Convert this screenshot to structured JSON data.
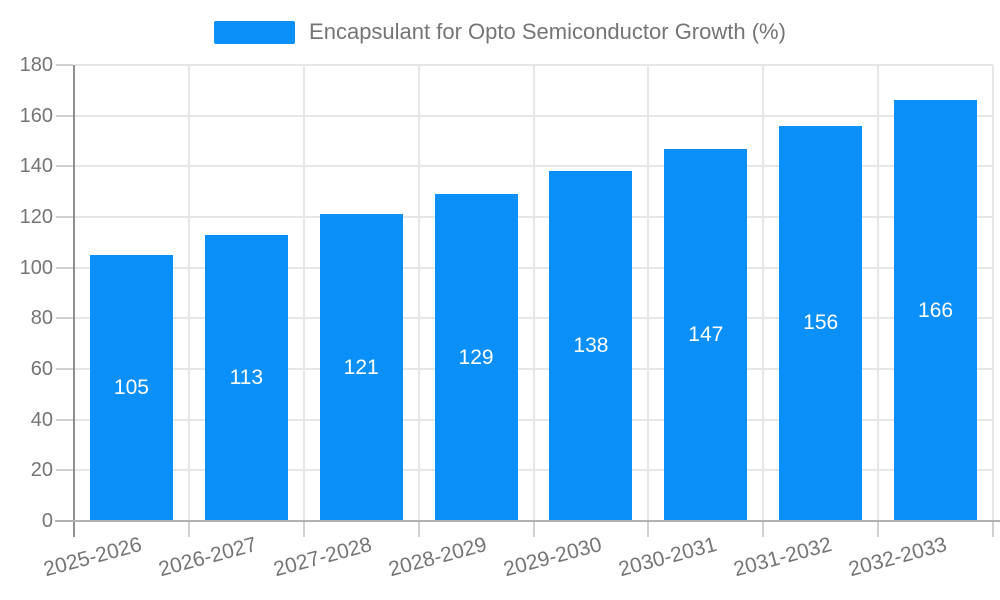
{
  "legend": {
    "label": "Encapsulant for Opto Semiconductor Growth (%)"
  },
  "chart_data": {
    "type": "bar",
    "title": "Encapsulant for Opto Semiconductor Growth (%)",
    "categories": [
      "2025-2026",
      "2026-2027",
      "2027-2028",
      "2028-2029",
      "2029-2030",
      "2030-2031",
      "2031-2032",
      "2032-2033"
    ],
    "values": [
      105,
      113,
      121,
      129,
      138,
      147,
      156,
      166
    ],
    "xlabel": "",
    "ylabel": "",
    "ylim": [
      0,
      180
    ],
    "yticks": [
      0,
      20,
      40,
      60,
      80,
      100,
      120,
      140,
      160,
      180
    ],
    "grid": true,
    "legend_position": "top",
    "value_label_position": "inside-center",
    "x_label_rotation_deg": -15,
    "colors": {
      "bar": "#0a90f8",
      "value_label": "#ffffff",
      "axis_text": "#757575",
      "legend_text": "#757575",
      "gridline": "#e7e7e7",
      "y_axis_line": "#8f8f8f",
      "x_axis_line": "#b3b3b3",
      "tick": "#d0d0d0",
      "background": "#ffffff"
    }
  }
}
